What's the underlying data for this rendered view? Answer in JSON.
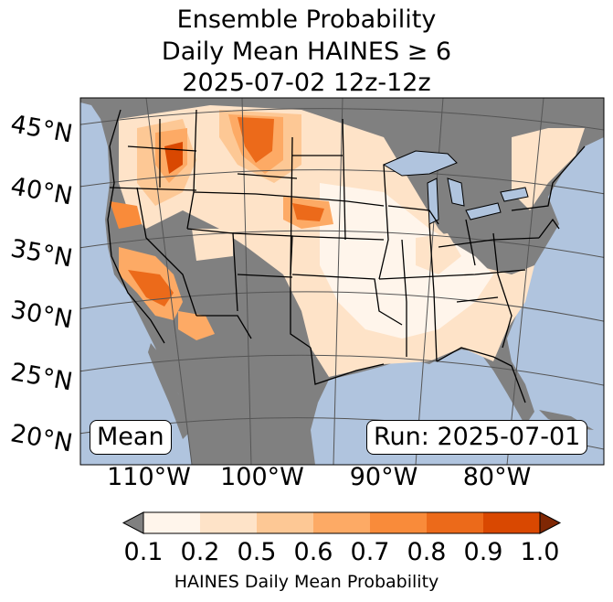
{
  "title": {
    "line1": "Ensemble Probability",
    "line2": "Daily Mean HAINES ≥ 6",
    "line3": "2025-07-02 12z-12z"
  },
  "map": {
    "lat_labels": [
      "45°N",
      "40°N",
      "35°N",
      "30°N",
      "25°N",
      "20°N"
    ],
    "lon_labels": [
      "110°W",
      "100°W",
      "90°W",
      "80°W"
    ],
    "stat_label": "Mean",
    "run_label": "Run: 2025-07-01",
    "ocean_color": "#b0c4de",
    "land_masked_color": "#808080",
    "state_border_color": "#000000",
    "graticule_color": "#555555",
    "field_levels": [
      {
        "range": "0.1-0.2",
        "color": "#fff5eb"
      },
      {
        "range": "0.2-0.5",
        "color": "#fee3c8"
      },
      {
        "range": "0.5-0.6",
        "color": "#fdc895"
      },
      {
        "range": "0.6-0.7",
        "color": "#fdaa65"
      },
      {
        "range": "0.7-0.8",
        "color": "#f98b3a"
      },
      {
        "range": "0.8-0.9",
        "color": "#ec6a1a"
      },
      {
        "range": "0.9-1.0",
        "color": "#d94801"
      }
    ]
  },
  "colorbar": {
    "ticks": [
      "0.1",
      "0.2",
      "0.5",
      "0.6",
      "0.7",
      "0.8",
      "0.9",
      "1.0"
    ],
    "label": "HAINES Daily Mean Probability",
    "under_color": "#808080",
    "over_color": "#7f2704"
  }
}
